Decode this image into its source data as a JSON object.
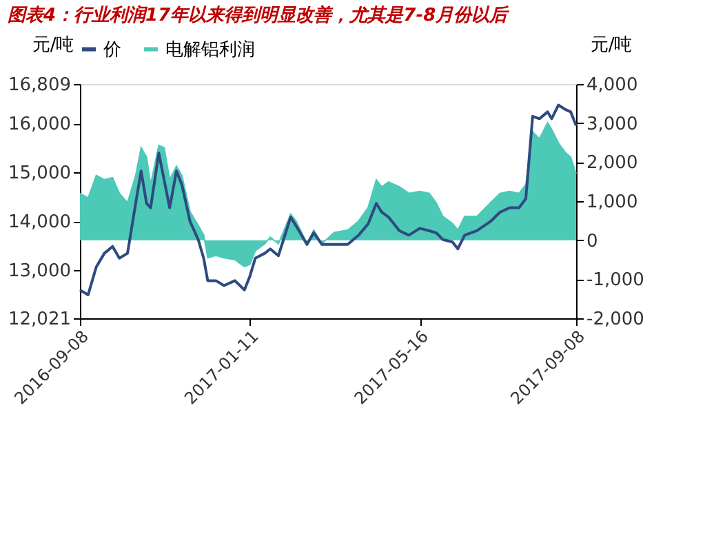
{
  "chart_data": {
    "type": "line",
    "title": "图表4：行业利润17年以来得到明显改善，尤其是7-8月份以后",
    "ylabel": "元/吨",
    "y2label": "元/吨",
    "x": [
      "2016-09-08",
      "2016-09-14",
      "2016-09-20",
      "2016-09-26",
      "2016-10-02",
      "2016-10-07",
      "2016-10-13",
      "2016-10-19",
      "2016-10-23",
      "2016-10-27",
      "2016-10-30",
      "2016-11-05",
      "2016-11-09",
      "2016-11-13",
      "2016-11-18",
      "2016-11-22",
      "2016-11-28",
      "2016-12-04",
      "2016-12-08",
      "2016-12-11",
      "2016-12-17",
      "2016-12-23",
      "2016-12-31",
      "2017-01-07",
      "2017-01-11",
      "2017-01-15",
      "2017-01-22",
      "2017-01-26",
      "2017-02-01",
      "2017-02-10",
      "2017-02-14",
      "2017-02-22",
      "2017-02-27",
      "2017-03-05",
      "2017-03-14",
      "2017-03-24",
      "2017-04-01",
      "2017-04-08",
      "2017-04-14",
      "2017-04-18",
      "2017-04-23",
      "2017-05-01",
      "2017-05-08",
      "2017-05-16",
      "2017-05-23",
      "2017-05-28",
      "2017-06-02",
      "2017-06-09",
      "2017-06-13",
      "2017-06-18",
      "2017-06-27",
      "2017-07-07",
      "2017-07-14",
      "2017-07-21",
      "2017-07-28",
      "2017-08-02",
      "2017-08-07",
      "2017-08-12",
      "2017-08-18",
      "2017-08-21",
      "2017-08-26",
      "2017-08-31",
      "2017-09-04",
      "2017-09-08"
    ],
    "series": [
      {
        "name": "价",
        "type": "line",
        "color": "#2e4a7f",
        "values": [
          12600,
          12500,
          13070,
          13350,
          13490,
          13250,
          13350,
          14370,
          15030,
          14370,
          14280,
          15400,
          14840,
          14280,
          15030,
          14750,
          14000,
          13630,
          13250,
          12790,
          12790,
          12690,
          12790,
          12600,
          12880,
          13250,
          13350,
          13440,
          13300,
          14090,
          13910,
          13530,
          13770,
          13530,
          13530,
          13530,
          13720,
          13950,
          14370,
          14190,
          14090,
          13810,
          13720,
          13860,
          13810,
          13770,
          13630,
          13580,
          13440,
          13720,
          13810,
          14000,
          14190,
          14280,
          14280,
          14470,
          16150,
          16100,
          16240,
          16100,
          16380,
          16290,
          16240,
          15960
        ]
      },
      {
        "name": "电解铝利润",
        "type": "area",
        "axis": "y2",
        "color": "#4dc9b8",
        "values": [
          1200,
          1080,
          1660,
          1550,
          1600,
          1200,
          960,
          1660,
          2370,
          2130,
          1430,
          2430,
          2370,
          1550,
          1900,
          1660,
          730,
          380,
          140,
          -450,
          -390,
          -450,
          -500,
          -680,
          -620,
          -270,
          -90,
          80,
          -90,
          670,
          490,
          -90,
          260,
          -90,
          200,
          260,
          490,
          840,
          1550,
          1370,
          1490,
          1370,
          1200,
          1250,
          1200,
          960,
          610,
          430,
          260,
          610,
          610,
          960,
          1200,
          1250,
          1200,
          1430,
          2780,
          2600,
          3010,
          2840,
          2490,
          2250,
          2130,
          1700
        ]
      }
    ],
    "xlim": [
      "2016-09-08",
      "2017-09-08"
    ],
    "xticks": [
      "2016-09-08",
      "2017-01-11",
      "2017-05-16",
      "2017-09-08"
    ],
    "ylim": [
      12021,
      16809
    ],
    "yticks": [
      {
        "value": 12021,
        "label": "12,021"
      },
      {
        "value": 13000,
        "label": "13,000"
      },
      {
        "value": 14000,
        "label": "14,000"
      },
      {
        "value": 15000,
        "label": "15,000"
      },
      {
        "value": 16000,
        "label": "16,000"
      },
      {
        "value": 16809,
        "label": "16,809"
      }
    ],
    "y2lim": [
      -2000,
      4000
    ],
    "y2ticks": [
      {
        "value": -2000,
        "label": "-2,000"
      },
      {
        "value": -1000,
        "label": "-1,000"
      },
      0,
      {
        "value": 1000,
        "label": "1,000"
      },
      {
        "value": 2000,
        "label": "2,000"
      },
      {
        "value": 3000,
        "label": "3,000"
      },
      {
        "value": 4000,
        "label": "4,000"
      }
    ],
    "legend": "top",
    "grid": false
  }
}
